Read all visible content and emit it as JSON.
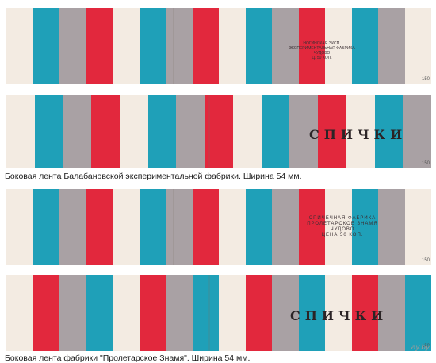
{
  "colors": {
    "blue": "#1fa0b8",
    "grey": "#a9a1a4",
    "red": "#e2283d",
    "cream": "#f3ebe2"
  },
  "strips": [
    {
      "pattern": [
        "cream",
        "blue",
        "grey",
        "red",
        "cream",
        "blue",
        "grey",
        "red",
        "cream",
        "blue",
        "grey",
        "red",
        "cream",
        "blue",
        "grey",
        "cream"
      ],
      "text_lines": [
        "НОГИНСКАЯ ЭКСП.",
        "ЭКСПЕРИМЕНТАЛЬНАЯ ФАБРИКА",
        "ЧУДОВО",
        "Ц. 50 КОП."
      ],
      "edge_number": "150"
    },
    {
      "pattern": [
        "cream",
        "blue",
        "grey",
        "red",
        "cream",
        "blue",
        "grey",
        "red",
        "cream",
        "blue",
        "grey",
        "red",
        "cream",
        "blue",
        "grey"
      ],
      "word": "СПИЧКИ",
      "edge_number": "150"
    },
    {
      "pattern": [
        "cream",
        "blue",
        "grey",
        "red",
        "cream",
        "blue",
        "grey",
        "red",
        "cream",
        "blue",
        "grey",
        "red",
        "cream",
        "blue",
        "grey",
        "cream"
      ],
      "text_lines": [
        "СПИЧЕЧНАЯ ФАБРИКА",
        "ПРОЛЕТАРСКОЕ ЗНАМЯ",
        "ЧУДОВО",
        "ЦЕНА 50 КОП."
      ],
      "edge_number": "150"
    },
    {
      "pattern": [
        "cream",
        "red",
        "grey",
        "blue",
        "cream",
        "red",
        "grey",
        "blue",
        "cream",
        "red",
        "grey",
        "blue",
        "cream",
        "red",
        "grey",
        "blue"
      ],
      "word": "СПИЧКИ",
      "edge_number": "150"
    }
  ],
  "captions": [
    "Боковая лента Балабановской экспериментальной фабрики. Ширина 54 мм.",
    "Боковая лента фабрики \"Пролетарское Знамя\". Ширина 54 мм."
  ],
  "watermark": "ay.by"
}
